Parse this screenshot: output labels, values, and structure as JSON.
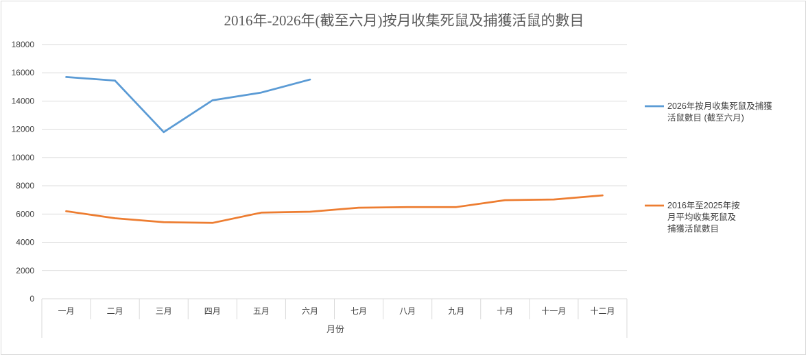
{
  "chart_data": {
    "type": "line",
    "title": "2016年-2026年(截至六月)按月收集死鼠及捕獲活鼠的數目",
    "xlabel": "月份",
    "ylabel": "",
    "categories": [
      "一月",
      "二月",
      "三月",
      "四月",
      "五月",
      "六月",
      "七月",
      "八月",
      "九月",
      "十月",
      "十一月",
      "十二月"
    ],
    "ylim": [
      0,
      18000
    ],
    "yticks": [
      0,
      2000,
      4000,
      6000,
      8000,
      10000,
      12000,
      14000,
      16000,
      18000
    ],
    "grid": true,
    "legend_position": "right",
    "series": [
      {
        "name_lines": [
          "2026年按月收集死鼠及捕獲",
          "活鼠數目 (截至六月)"
        ],
        "color": "#5b9bd5",
        "values": [
          15700,
          15450,
          11800,
          14050,
          14600,
          15520,
          null,
          null,
          null,
          null,
          null,
          null
        ]
      },
      {
        "name_lines": [
          "2016年至2025年按",
          "月平均收集死鼠及",
          "捕獲活鼠數目"
        ],
        "color": "#ed7d31",
        "values": [
          6200,
          5700,
          5420,
          5370,
          6100,
          6160,
          6450,
          6490,
          6490,
          6980,
          7030,
          7320
        ]
      }
    ]
  }
}
